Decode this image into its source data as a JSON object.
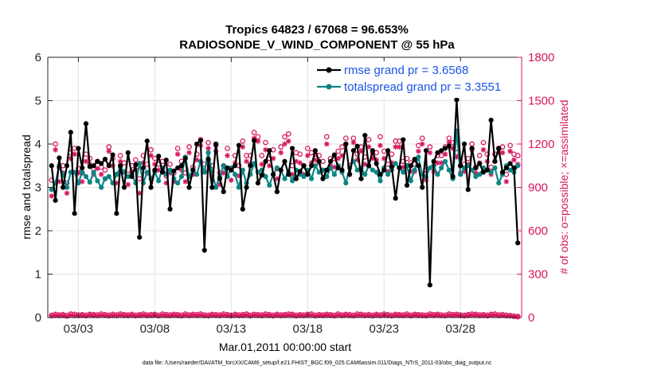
{
  "chart_data": {
    "type": "line",
    "title": "Tropics 64823 / 67068 = 96.653%",
    "subtitle": "RADIOSONDE_V_WIND_COMPONENT @ 55 hPa",
    "xlabel": "Mar.01,2011 00:00:00 start",
    "ylabel": "rmse and totalspread",
    "ylabel_right": "# of obs: o=possible; ×=assimilated",
    "footnote": "data file: /Users/raeder/DAI/ATM_forcXX/CAM6_setup/f.e21.FHIST_BGC.f09_025.CAM6assim.011/Diags_NTrS_2011-03/obs_diag_output.nc",
    "xlim": [
      1,
      32
    ],
    "ylim": [
      0,
      6
    ],
    "ylim_right": [
      0,
      1800
    ],
    "x_ticks": [
      3,
      8,
      13,
      18,
      23,
      28
    ],
    "x_tick_labels": [
      "03/03",
      "03/08",
      "03/13",
      "03/18",
      "03/23",
      "03/28"
    ],
    "y_ticks": [
      0,
      1,
      2,
      3,
      4,
      5,
      6
    ],
    "y_tick_labels": [
      "0",
      "1",
      "2",
      "3",
      "4",
      "5",
      "6"
    ],
    "y_ticks_right": [
      0,
      300,
      600,
      900,
      1200,
      1500,
      1800
    ],
    "y_tick_labels_right": [
      "0",
      "300",
      "600",
      "900",
      "1200",
      "1500",
      "1800"
    ],
    "legend": [
      {
        "name": "rmse grand pr = 3.6568",
        "color": "#000000"
      },
      {
        "name": "totalspread grand pr = 3.3551",
        "color": "#0d8585"
      }
    ],
    "colors": {
      "rmse": "#000000",
      "spread": "#0d8585",
      "obs": "#d6175f"
    },
    "x": [
      1.25,
      1.5,
      1.75,
      2.0,
      2.25,
      2.5,
      2.75,
      3.0,
      3.25,
      3.5,
      3.75,
      4.0,
      4.25,
      4.5,
      4.75,
      5.0,
      5.25,
      5.5,
      5.75,
      6.0,
      6.25,
      6.5,
      6.75,
      7.0,
      7.25,
      7.5,
      7.75,
      8.0,
      8.25,
      8.5,
      8.75,
      9.0,
      9.25,
      9.5,
      9.75,
      10.0,
      10.25,
      10.5,
      10.75,
      11.0,
      11.25,
      11.5,
      11.75,
      12.0,
      12.25,
      12.5,
      12.75,
      13.0,
      13.25,
      13.5,
      13.75,
      14.0,
      14.25,
      14.5,
      14.75,
      15.0,
      15.25,
      15.5,
      15.75,
      16.0,
      16.25,
      16.5,
      16.75,
      17.0,
      17.25,
      17.5,
      17.75,
      18.0,
      18.25,
      18.5,
      18.75,
      19.0,
      19.25,
      19.5,
      19.75,
      20.0,
      20.25,
      20.5,
      20.75,
      21.0,
      21.25,
      21.5,
      21.75,
      22.0,
      22.25,
      22.5,
      22.75,
      23.0,
      23.25,
      23.5,
      23.75,
      24.0,
      24.25,
      24.5,
      24.75,
      25.0,
      25.25,
      25.5,
      25.75,
      26.0,
      26.25,
      26.5,
      26.75,
      27.0,
      27.25,
      27.5,
      27.75,
      28.0,
      28.25,
      28.5,
      28.75,
      29.0,
      29.25,
      29.5,
      29.75,
      30.0,
      30.25,
      30.5,
      30.75,
      31.0,
      31.25,
      31.5,
      31.75
    ],
    "series": [
      {
        "name": "rmse",
        "values": [
          3.5,
          2.7,
          3.68,
          3.0,
          3.5,
          4.27,
          2.4,
          3.9,
          3.45,
          4.47,
          3.48,
          3.5,
          3.6,
          3.55,
          3.65,
          3.5,
          3.75,
          2.4,
          3.5,
          3.0,
          3.8,
          3.25,
          3.52,
          1.85,
          3.45,
          4.07,
          3.0,
          3.4,
          3.72,
          3.35,
          3.63,
          2.5,
          3.38,
          3.45,
          3.5,
          3.67,
          3.0,
          3.4,
          4.0,
          4.08,
          1.55,
          3.65,
          3.0,
          4.0,
          3.2,
          2.9,
          3.45,
          3.4,
          3.5,
          3.97,
          2.5,
          3.0,
          3.5,
          4.08,
          3.1,
          3.28,
          3.6,
          3.85,
          3.3,
          2.9,
          3.4,
          3.6,
          3.3,
          3.9,
          3.2,
          3.37,
          3.5,
          3.3,
          3.5,
          3.85,
          3.6,
          3.2,
          3.4,
          3.6,
          3.75,
          3.45,
          3.4,
          4.0,
          3.3,
          3.85,
          3.95,
          3.2,
          4.2,
          3.5,
          3.85,
          3.55,
          3.3,
          3.4,
          3.85,
          3.47,
          2.75,
          3.45,
          4.1,
          3.05,
          3.5,
          3.65,
          3.5,
          3.0,
          3.85,
          0.75,
          3.6,
          3.8,
          3.85,
          3.9,
          3.95,
          3.25,
          5.02,
          3.5,
          4.0,
          2.95,
          3.9,
          3.45,
          3.55,
          3.35,
          3.4,
          4.55,
          3.6,
          3.9,
          3.35,
          3.45,
          3.55,
          3.45,
          1.72
        ]
      },
      {
        "name": "totalspread",
        "values": [
          2.95,
          3.1,
          3.5,
          3.3,
          3.0,
          3.35,
          3.35,
          3.1,
          3.35,
          3.25,
          3.12,
          3.35,
          3.15,
          3.0,
          3.2,
          3.25,
          3.1,
          3.3,
          3.45,
          3.35,
          3.25,
          3.3,
          3.1,
          3.55,
          3.1,
          3.35,
          3.2,
          3.35,
          3.15,
          3.45,
          3.3,
          3.4,
          3.2,
          3.1,
          3.25,
          3.7,
          3.25,
          3.4,
          3.3,
          3.6,
          3.35,
          3.8,
          3.35,
          3.0,
          3.25,
          3.5,
          3.25,
          3.45,
          3.3,
          3.0,
          3.4,
          3.1,
          3.3,
          3.55,
          3.35,
          3.4,
          3.25,
          3.05,
          3.3,
          3.45,
          3.4,
          3.2,
          3.35,
          3.15,
          3.4,
          3.3,
          3.25,
          3.4,
          3.2,
          3.5,
          3.35,
          3.4,
          3.25,
          3.45,
          3.3,
          3.5,
          3.35,
          3.1,
          3.45,
          3.6,
          3.4,
          3.45,
          3.3,
          3.5,
          3.4,
          3.35,
          3.15,
          3.45,
          3.3,
          3.4,
          3.55,
          3.45,
          3.35,
          3.5,
          3.15,
          3.4,
          3.7,
          3.3,
          3.25,
          3.45,
          3.5,
          3.3,
          3.45,
          3.6,
          3.4,
          3.2,
          4.3,
          3.3,
          3.45,
          3.5,
          3.4,
          3.25,
          3.3,
          3.45,
          3.4,
          3.35,
          3.45,
          3.1,
          3.3,
          3.5,
          3.4,
          3.35,
          3.5
        ]
      },
      {
        "name": "obs_possible",
        "values": [
          950,
          1200,
          1040,
          1050,
          930,
          1140,
          1170,
          1030,
          1000,
          1130,
          1100,
          1030,
          1080,
          1040,
          1020,
          1180,
          1100,
          990,
          1120,
          1070,
          990,
          1050,
          1090,
          960,
          1120,
          1060,
          1160,
          1100,
          1060,
          1080,
          980,
          1060,
          1000,
          1170,
          1080,
          1000,
          1180,
          1040,
          1130,
          1230,
          1060,
          1210,
          1050,
          1190,
          1000,
          1050,
          1170,
          1030,
          1120,
          1050,
          1220,
          1120,
          1120,
          1280,
          1250,
          1120,
          1210,
          1100,
          1160,
          1030,
          1180,
          1250,
          1270,
          1050,
          1140,
          1130,
          1050,
          1170,
          1140,
          1130,
          1120,
          1080,
          1250,
          1100,
          1100,
          1150,
          1180,
          1240,
          1050,
          1240,
          1130,
          1180,
          1110,
          1230,
          1140,
          1140,
          1250,
          1150,
          1060,
          1130,
          1220,
          1220,
          1080,
          1100,
          1070,
          1060,
          1190,
          1240,
          1020,
          1180,
          1050,
          1120,
          1120,
          1180,
          1240,
          1210,
          1140,
          1050,
          1060,
          1100,
          1200,
          1040,
          1120,
          1210,
          1130,
          1040,
          1130,
          1170,
          1180,
          990,
          1190,
          1130,
          1120
        ]
      },
      {
        "name": "obs_assimilated",
        "values": [
          840,
          1160,
          940,
          1000,
          860,
          1100,
          1130,
          1000,
          940,
          1080,
          1060,
          990,
          1030,
          990,
          960,
          1150,
          1050,
          930,
          1080,
          1010,
          920,
          1010,
          1020,
          860,
          1070,
          1000,
          1120,
          1060,
          1020,
          1030,
          930,
          1000,
          940,
          1130,
          1020,
          940,
          1140,
          990,
          1090,
          1190,
          1010,
          1170,
          980,
          1150,
          920,
          1000,
          1120,
          950,
          1070,
          980,
          1180,
          1080,
          1060,
          1240,
          1220,
          1060,
          1160,
          1050,
          1100,
          960,
          1140,
          1200,
          1220,
          990,
          1080,
          1070,
          990,
          1120,
          1070,
          1090,
          1070,
          1020,
          1200,
          1050,
          1040,
          1100,
          1120,
          1200,
          990,
          1210,
          1090,
          1150,
          1060,
          1180,
          1100,
          1090,
          1190,
          1100,
          1010,
          1070,
          1180,
          1180,
          1040,
          1050,
          1010,
          1010,
          1150,
          1200,
          950,
          1140,
          1010,
          1070,
          1070,
          1130,
          1210,
          1170,
          1110,
          1000,
          1010,
          1060,
          1160,
          1000,
          1070,
          1160,
          1080,
          990,
          1080,
          1140,
          1140,
          940,
          1150,
          1090,
          1060
        ]
      },
      {
        "name": "obs_possible_low",
        "values": [
          16,
          22,
          18,
          20,
          14,
          24,
          22,
          18,
          20,
          16,
          22,
          20,
          18,
          24,
          20,
          16,
          22,
          18,
          24,
          20,
          18,
          22,
          16,
          20,
          24,
          18,
          20,
          22,
          16,
          24,
          20,
          18,
          22,
          20,
          16,
          24,
          18,
          22,
          20,
          24,
          18,
          16,
          22,
          20,
          18,
          24,
          20,
          16,
          22,
          18,
          20,
          24,
          16,
          22,
          20,
          18,
          24,
          20,
          16,
          22,
          18,
          20,
          24,
          22,
          16,
          20,
          18,
          22,
          24,
          16,
          20,
          18,
          22,
          20,
          16,
          24,
          18,
          22,
          20,
          16,
          24,
          22,
          18,
          20,
          16,
          22,
          18,
          24,
          20,
          16,
          22,
          20,
          18,
          24,
          16,
          22,
          20,
          18,
          16,
          24,
          20,
          22,
          18,
          16,
          24,
          20,
          22,
          18,
          16,
          20,
          24,
          22,
          18,
          20,
          16,
          22,
          24,
          18,
          20,
          16,
          14,
          10,
          8
        ]
      },
      {
        "name": "obs_assimilated_low",
        "values": [
          10,
          14,
          12,
          14,
          8,
          16,
          14,
          12,
          14,
          10,
          16,
          14,
          12,
          16,
          14,
          10,
          14,
          12,
          16,
          14,
          12,
          16,
          10,
          14,
          16,
          12,
          14,
          16,
          10,
          16,
          14,
          12,
          16,
          14,
          10,
          16,
          12,
          16,
          14,
          16,
          12,
          10,
          16,
          14,
          12,
          16,
          14,
          10,
          16,
          12,
          14,
          16,
          10,
          16,
          14,
          12,
          16,
          14,
          10,
          16,
          12,
          14,
          16,
          16,
          10,
          14,
          12,
          16,
          16,
          10,
          14,
          12,
          16,
          14,
          10,
          16,
          12,
          16,
          14,
          10,
          16,
          16,
          12,
          14,
          10,
          16,
          12,
          16,
          14,
          10,
          16,
          14,
          12,
          16,
          10,
          16,
          14,
          12,
          10,
          16,
          14,
          16,
          12,
          10,
          16,
          14,
          16,
          12,
          10,
          14,
          16,
          16,
          12,
          14,
          10,
          16,
          16,
          12,
          14,
          10,
          10,
          6,
          4
        ]
      }
    ]
  }
}
